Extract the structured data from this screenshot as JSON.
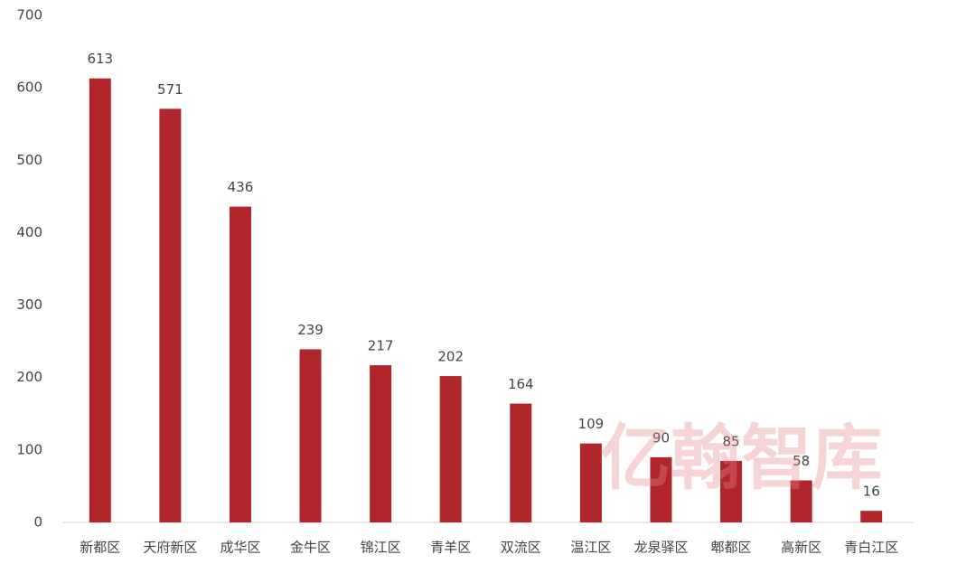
{
  "chart_data": {
    "type": "bar",
    "categories": [
      "新都区",
      "天府新区",
      "成华区",
      "金牛区",
      "锦江区",
      "青羊区",
      "双流区",
      "温江区",
      "龙泉驿区",
      "郫都区",
      "高新区",
      "青白江区"
    ],
    "values": [
      613,
      571,
      436,
      239,
      217,
      202,
      164,
      109,
      90,
      85,
      58,
      16
    ],
    "color": "#b0262a",
    "ylim": [
      0,
      700
    ],
    "yticks": [
      0,
      100,
      200,
      300,
      400,
      500,
      600,
      700
    ],
    "grid": false,
    "watermark": "亿翰智库"
  }
}
